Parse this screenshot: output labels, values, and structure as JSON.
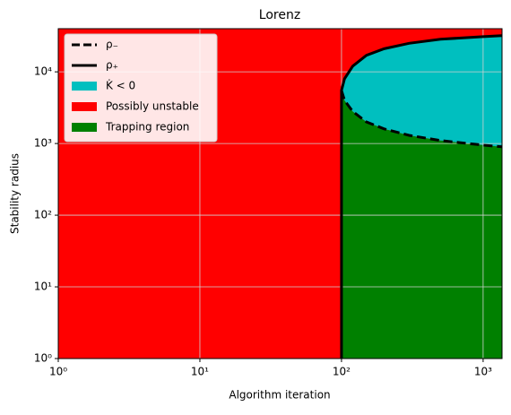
{
  "chart_data": {
    "type": "line",
    "title": "Lorenz",
    "x_label": "Algorithm iteration",
    "y_label": "Stability radius",
    "xscale": "log",
    "yscale": "log",
    "grid": true,
    "legend": "upper left",
    "xlim": [
      1,
      1360
    ],
    "ylim": [
      1,
      40000
    ],
    "xticks": [
      {
        "value": 1,
        "label": "10⁰"
      },
      {
        "value": 10,
        "label": "10¹"
      },
      {
        "value": 100,
        "label": "10²"
      },
      {
        "value": 1000,
        "label": "10³"
      }
    ],
    "yticks": [
      {
        "value": 1,
        "label": "10⁰"
      },
      {
        "value": 10,
        "label": "10¹"
      },
      {
        "value": 100,
        "label": "10²"
      },
      {
        "value": 1000,
        "label": "10³"
      },
      {
        "value": 10000,
        "label": "10⁴"
      }
    ],
    "series": [
      {
        "name": "ρ₋",
        "color": "#000000",
        "dash": true,
        "x": [
          100,
          105,
          120,
          150,
          200,
          300,
          500,
          1000,
          1360
        ],
        "values": [
          5500,
          4000,
          2800,
          2000,
          1600,
          1300,
          1100,
          950,
          900
        ]
      },
      {
        "name": "ρ₊",
        "color": "#000000",
        "dash": false,
        "x": [
          100,
          100,
          105,
          120,
          150,
          200,
          300,
          500,
          1000,
          1360
        ],
        "values": [
          1,
          5500,
          8000,
          12000,
          17000,
          21000,
          25000,
          28500,
          31000,
          32000
        ]
      }
    ],
    "regions": [
      {
        "name": "K̇ < 0",
        "color": "#00bfbf"
      },
      {
        "name": "Possibly unstable",
        "color": "#ff0000"
      },
      {
        "name": "Trapping region",
        "color": "#008000"
      }
    ]
  }
}
